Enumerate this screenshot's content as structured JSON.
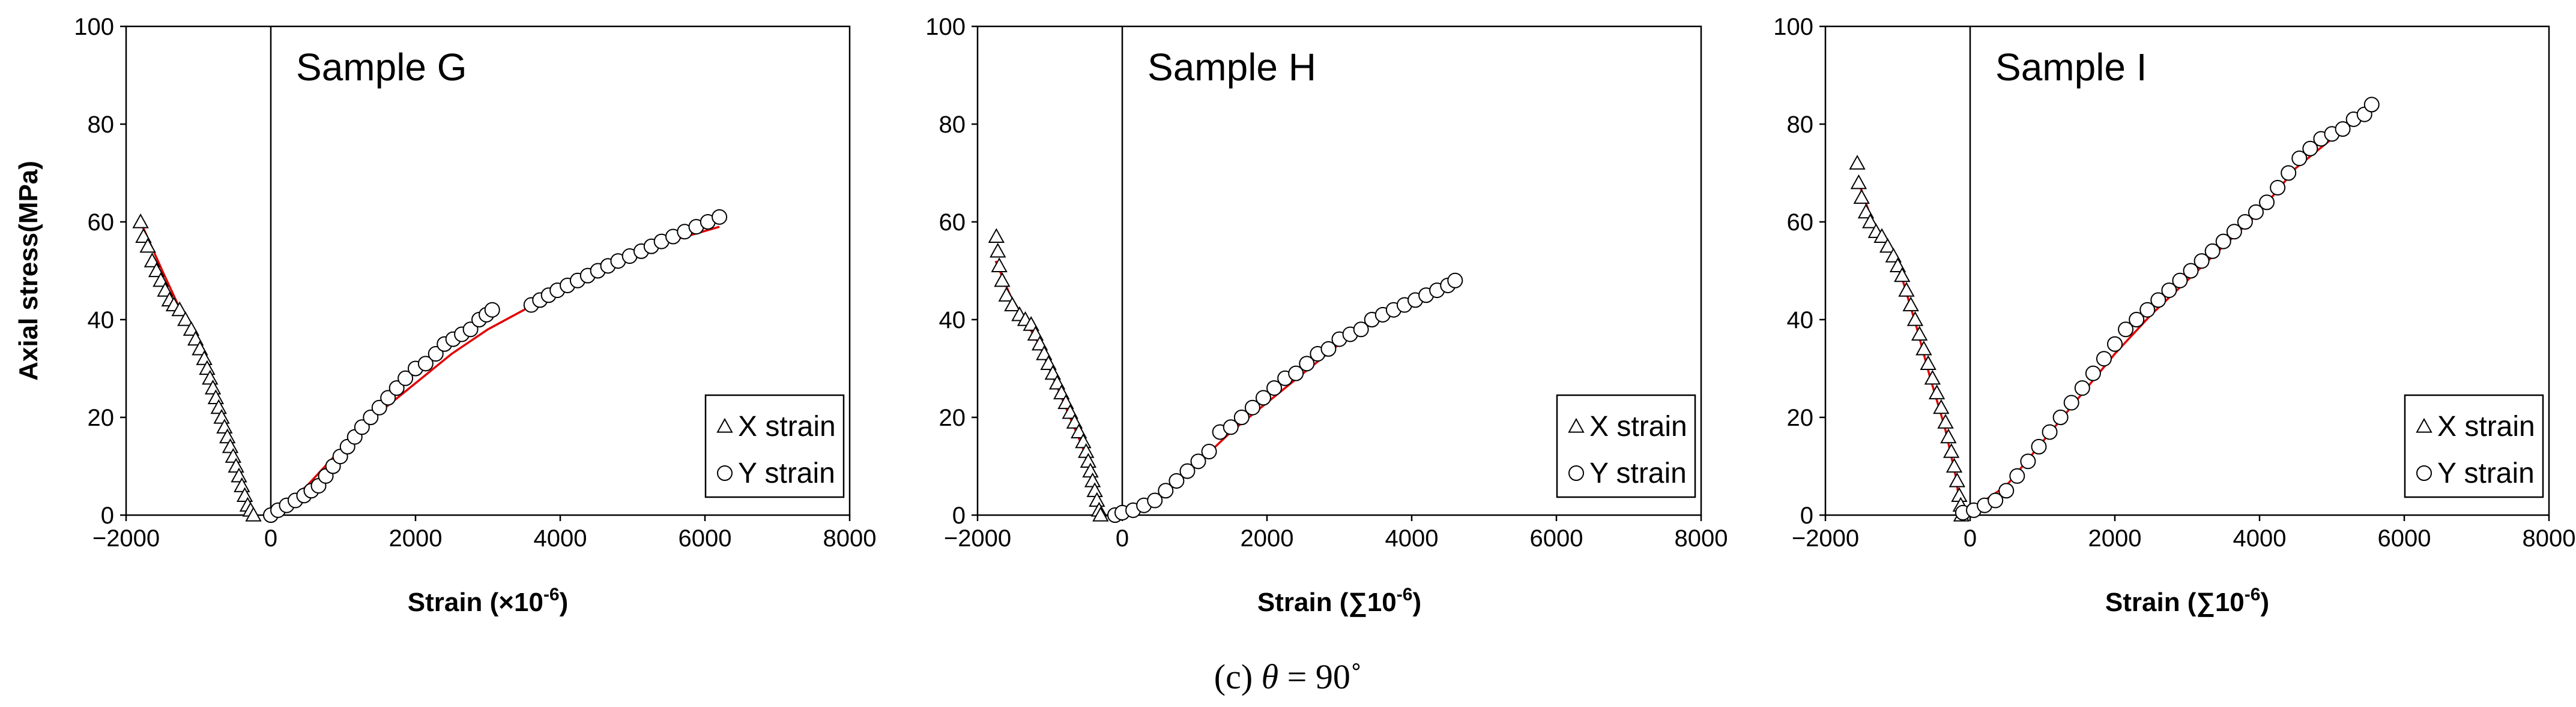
{
  "figure": {
    "caption_prefix": "(c) ",
    "caption_symbol": "θ",
    "caption_value": " = 90˚"
  },
  "colors": {
    "fit_line": "#e00000",
    "marker_stroke": "#000000",
    "axis": "#000000"
  },
  "chart_data": [
    {
      "type": "scatter",
      "title": "Sample G",
      "ylabel": "Axial stress(MPa)",
      "xlabel_main": "Strain (×10",
      "xlabel_sup": "-6",
      "xlabel_end": ")",
      "xlim": [
        -2000,
        8000
      ],
      "ylim": [
        0,
        100
      ],
      "xticks": [
        -2000,
        0,
        2000,
        4000,
        6000,
        8000
      ],
      "yticks": [
        0,
        20,
        40,
        60,
        80,
        100
      ],
      "legend_position": "bottom-right",
      "series": [
        {
          "name": "X strain",
          "marker": "triangle",
          "points": [
            [
              -1800,
              60
            ],
            [
              -1760,
              57
            ],
            [
              -1700,
              55
            ],
            [
              -1640,
              52
            ],
            [
              -1580,
              50
            ],
            [
              -1520,
              48
            ],
            [
              -1460,
              46
            ],
            [
              -1400,
              44
            ],
            [
              -1340,
              43
            ],
            [
              -1260,
              42
            ],
            [
              -1180,
              40
            ],
            [
              -1100,
              38
            ],
            [
              -1040,
              36
            ],
            [
              -980,
              34
            ],
            [
              -920,
              32
            ],
            [
              -880,
              30
            ],
            [
              -840,
              28
            ],
            [
              -800,
              26
            ],
            [
              -760,
              24
            ],
            [
              -720,
              22
            ],
            [
              -680,
              20
            ],
            [
              -640,
              18
            ],
            [
              -600,
              16
            ],
            [
              -560,
              14
            ],
            [
              -520,
              12
            ],
            [
              -480,
              10
            ],
            [
              -440,
              8
            ],
            [
              -400,
              6
            ],
            [
              -360,
              4
            ],
            [
              -320,
              2
            ],
            [
              -280,
              1
            ],
            [
              -240,
              0
            ]
          ]
        },
        {
          "name": "Y strain",
          "marker": "circle",
          "points": [
            [
              0,
              0
            ],
            [
              100,
              1
            ],
            [
              220,
              2
            ],
            [
              340,
              3
            ],
            [
              460,
              4
            ],
            [
              560,
              5
            ],
            [
              660,
              6
            ],
            [
              760,
              8
            ],
            [
              860,
              10
            ],
            [
              960,
              12
            ],
            [
              1060,
              14
            ],
            [
              1160,
              16
            ],
            [
              1260,
              18
            ],
            [
              1380,
              20
            ],
            [
              1500,
              22
            ],
            [
              1620,
              24
            ],
            [
              1740,
              26
            ],
            [
              1860,
              28
            ],
            [
              2000,
              30
            ],
            [
              2140,
              31
            ],
            [
              2280,
              33
            ],
            [
              2400,
              35
            ],
            [
              2520,
              36
            ],
            [
              2640,
              37
            ],
            [
              2760,
              38
            ],
            [
              2880,
              40
            ],
            [
              2980,
              41
            ],
            [
              3060,
              42
            ],
            [
              3600,
              43
            ],
            [
              3720,
              44
            ],
            [
              3840,
              45
            ],
            [
              3960,
              46
            ],
            [
              4100,
              47
            ],
            [
              4240,
              48
            ],
            [
              4380,
              49
            ],
            [
              4520,
              50
            ],
            [
              4660,
              51
            ],
            [
              4800,
              52
            ],
            [
              4960,
              53
            ],
            [
              5120,
              54
            ],
            [
              5260,
              55
            ],
            [
              5400,
              56
            ],
            [
              5560,
              57
            ],
            [
              5720,
              58
            ],
            [
              5880,
              59
            ],
            [
              6040,
              60
            ],
            [
              6200,
              61
            ]
          ]
        }
      ],
      "fit_x": [
        [
          -1800,
          60
        ],
        [
          -1500,
          50
        ],
        [
          -1250,
          42
        ],
        [
          -1050,
          37
        ],
        [
          -900,
          31
        ],
        [
          -700,
          22
        ],
        [
          -500,
          12
        ],
        [
          -350,
          4
        ],
        [
          -250,
          0
        ]
      ],
      "fit_y": [
        [
          0,
          0
        ],
        [
          500,
          6
        ],
        [
          1000,
          14
        ],
        [
          1500,
          21
        ],
        [
          2000,
          27
        ],
        [
          2500,
          33
        ],
        [
          3000,
          38
        ],
        [
          3500,
          42
        ],
        [
          4000,
          47
        ],
        [
          4500,
          51
        ],
        [
          5000,
          54
        ],
        [
          5500,
          56
        ],
        [
          6200,
          59
        ]
      ]
    },
    {
      "type": "scatter",
      "title": "Sample H",
      "ylabel": "",
      "xlabel_main": "Strain (∑10",
      "xlabel_sup": "-6",
      "xlabel_end": ")",
      "xlim": [
        -2000,
        8000
      ],
      "ylim": [
        0,
        100
      ],
      "xticks": [
        -2000,
        0,
        2000,
        4000,
        6000,
        8000
      ],
      "yticks": [
        0,
        20,
        40,
        60,
        80,
        100
      ],
      "legend_position": "bottom-right",
      "series": [
        {
          "name": "X strain",
          "marker": "triangle",
          "points": [
            [
              -1740,
              57
            ],
            [
              -1720,
              54
            ],
            [
              -1700,
              51
            ],
            [
              -1660,
              48
            ],
            [
              -1600,
              45
            ],
            [
              -1520,
              43
            ],
            [
              -1420,
              41
            ],
            [
              -1340,
              40
            ],
            [
              -1260,
              39
            ],
            [
              -1200,
              37
            ],
            [
              -1140,
              35
            ],
            [
              -1080,
              33
            ],
            [
              -1020,
              31
            ],
            [
              -960,
              29
            ],
            [
              -900,
              27
            ],
            [
              -840,
              25
            ],
            [
              -780,
              23
            ],
            [
              -720,
              21
            ],
            [
              -660,
              19
            ],
            [
              -600,
              17
            ],
            [
              -540,
              15
            ],
            [
              -500,
              13
            ],
            [
              -470,
              11
            ],
            [
              -440,
              9
            ],
            [
              -410,
              7
            ],
            [
              -380,
              5
            ],
            [
              -350,
              3
            ],
            [
              -320,
              1
            ],
            [
              -300,
              0
            ]
          ]
        },
        {
          "name": "Y strain",
          "marker": "circle",
          "points": [
            [
              -100,
              0
            ],
            [
              0,
              0.5
            ],
            [
              150,
              1
            ],
            [
              300,
              2
            ],
            [
              450,
              3
            ],
            [
              600,
              5
            ],
            [
              750,
              7
            ],
            [
              900,
              9
            ],
            [
              1050,
              11
            ],
            [
              1200,
              13
            ],
            [
              1350,
              17
            ],
            [
              1500,
              18
            ],
            [
              1650,
              20
            ],
            [
              1800,
              22
            ],
            [
              1950,
              24
            ],
            [
              2100,
              26
            ],
            [
              2250,
              28
            ],
            [
              2400,
              29
            ],
            [
              2550,
              31
            ],
            [
              2700,
              33
            ],
            [
              2850,
              34
            ],
            [
              3000,
              36
            ],
            [
              3150,
              37
            ],
            [
              3300,
              38
            ],
            [
              3450,
              40
            ],
            [
              3600,
              41
            ],
            [
              3750,
              42
            ],
            [
              3900,
              43
            ],
            [
              4050,
              44
            ],
            [
              4200,
              45
            ],
            [
              4350,
              46
            ],
            [
              4500,
              47
            ],
            [
              4600,
              48
            ]
          ]
        }
      ],
      "fit_x": [
        [
          -1750,
          52
        ],
        [
          -1550,
          45
        ],
        [
          -1350,
          40
        ],
        [
          -1150,
          35
        ],
        [
          -950,
          28
        ],
        [
          -750,
          21
        ],
        [
          -550,
          14
        ],
        [
          -400,
          7
        ],
        [
          -300,
          0
        ]
      ],
      "fit_y": [
        [
          -100,
          0
        ],
        [
          500,
          4
        ],
        [
          1000,
          10
        ],
        [
          1500,
          17
        ],
        [
          2000,
          23
        ],
        [
          2500,
          29
        ],
        [
          3000,
          35
        ],
        [
          3500,
          40
        ],
        [
          4000,
          44
        ],
        [
          4600,
          47
        ]
      ]
    },
    {
      "type": "scatter",
      "title": "Sample I",
      "ylabel": "",
      "xlabel_main": "Strain (∑10",
      "xlabel_sup": "-6",
      "xlabel_end": ")",
      "xlim": [
        -2000,
        8000
      ],
      "ylim": [
        0,
        100
      ],
      "xticks": [
        -2000,
        0,
        2000,
        4000,
        6000,
        8000
      ],
      "yticks": [
        0,
        20,
        40,
        60,
        80,
        100
      ],
      "legend_position": "bottom-right",
      "series": [
        {
          "name": "X strain",
          "marker": "triangle",
          "points": [
            [
              -1560,
              72
            ],
            [
              -1540,
              68
            ],
            [
              -1500,
              65
            ],
            [
              -1440,
              62
            ],
            [
              -1380,
              60
            ],
            [
              -1300,
              58
            ],
            [
              -1220,
              57
            ],
            [
              -1140,
              55
            ],
            [
              -1060,
              53
            ],
            [
              -1000,
              51
            ],
            [
              -940,
              49
            ],
            [
              -880,
              46
            ],
            [
              -820,
              43
            ],
            [
              -760,
              40
            ],
            [
              -700,
              37
            ],
            [
              -640,
              34
            ],
            [
              -580,
              31
            ],
            [
              -520,
              28
            ],
            [
              -460,
              25
            ],
            [
              -400,
              22
            ],
            [
              -340,
              19
            ],
            [
              -300,
              16
            ],
            [
              -260,
              13
            ],
            [
              -220,
              10
            ],
            [
              -180,
              7
            ],
            [
              -150,
              4
            ],
            [
              -130,
              2
            ],
            [
              -120,
              0
            ]
          ]
        },
        {
          "name": "Y strain",
          "marker": "circle",
          "points": [
            [
              -100,
              0.5
            ],
            [
              50,
              1
            ],
            [
              200,
              2
            ],
            [
              350,
              3
            ],
            [
              500,
              5
            ],
            [
              650,
              8
            ],
            [
              800,
              11
            ],
            [
              950,
              14
            ],
            [
              1100,
              17
            ],
            [
              1250,
              20
            ],
            [
              1400,
              23
            ],
            [
              1550,
              26
            ],
            [
              1700,
              29
            ],
            [
              1850,
              32
            ],
            [
              2000,
              35
            ],
            [
              2150,
              38
            ],
            [
              2300,
              40
            ],
            [
              2450,
              42
            ],
            [
              2600,
              44
            ],
            [
              2750,
              46
            ],
            [
              2900,
              48
            ],
            [
              3050,
              50
            ],
            [
              3200,
              52
            ],
            [
              3350,
              54
            ],
            [
              3500,
              56
            ],
            [
              3650,
              58
            ],
            [
              3800,
              60
            ],
            [
              3950,
              62
            ],
            [
              4100,
              64
            ],
            [
              4250,
              67
            ],
            [
              4400,
              70
            ],
            [
              4550,
              73
            ],
            [
              4700,
              75
            ],
            [
              4850,
              77
            ],
            [
              5000,
              78
            ],
            [
              5150,
              79
            ],
            [
              5300,
              81
            ],
            [
              5450,
              82
            ],
            [
              5550,
              84
            ]
          ]
        }
      ],
      "fit_x": [
        [
          -1560,
          69
        ],
        [
          -1350,
          60
        ],
        [
          -1150,
          56
        ],
        [
          -950,
          49
        ],
        [
          -750,
          39
        ],
        [
          -550,
          28
        ],
        [
          -350,
          18
        ],
        [
          -200,
          8
        ],
        [
          -120,
          0
        ]
      ],
      "fit_y": [
        [
          -100,
          0
        ],
        [
          500,
          6
        ],
        [
          1000,
          15
        ],
        [
          1500,
          24
        ],
        [
          2000,
          33
        ],
        [
          2500,
          41
        ],
        [
          3000,
          48
        ],
        [
          3500,
          55
        ],
        [
          4000,
          62
        ],
        [
          4500,
          71
        ],
        [
          5000,
          77
        ],
        [
          5550,
          83
        ]
      ]
    }
  ]
}
